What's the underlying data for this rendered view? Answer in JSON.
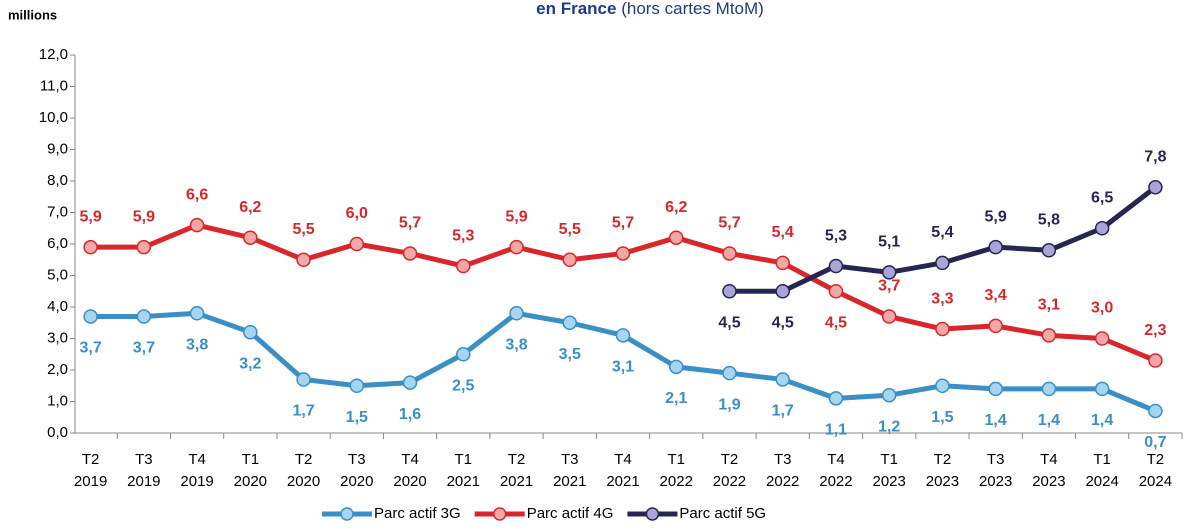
{
  "chart_data": {
    "type": "line",
    "title_bold": "en France",
    "title_rest": "(hors cartes MtoM)",
    "y_axis_label": "millions",
    "categories": [
      "T2 2019",
      "T3 2019",
      "T4 2019",
      "T1 2020",
      "T2 2020",
      "T3 2020",
      "T4 2020",
      "T1 2021",
      "T2 2021",
      "T3 2021",
      "T4 2021",
      "T1 2022",
      "T2 2022",
      "T3 2022",
      "T4 2022",
      "T1 2023",
      "T2 2023",
      "T3 2023",
      "T4 2023",
      "T1 2024",
      "T2 2024"
    ],
    "series": [
      {
        "name": "Parc actif 3G",
        "color": "#3a8fc7",
        "marker_fill": "#a6d5ef",
        "values": [
          3.7,
          3.7,
          3.8,
          3.2,
          1.7,
          1.5,
          1.6,
          2.5,
          3.8,
          3.5,
          3.1,
          2.1,
          1.9,
          1.7,
          1.1,
          1.2,
          1.5,
          1.4,
          1.4,
          1.4,
          0.7
        ],
        "value_labels": [
          "3,7",
          "3,7",
          "3,8",
          "3,2",
          "1,7",
          "1,5",
          "1,6",
          "2,5",
          "3,8",
          "3,5",
          "3,1",
          "2,1",
          "1,9",
          "1,7",
          "1,1",
          "1,2",
          "1,5",
          "1,4",
          "1,4",
          "1,4",
          "0,7"
        ]
      },
      {
        "name": "Parc actif 4G",
        "color": "#d9262b",
        "marker_fill": "#f4a7a7",
        "values": [
          5.9,
          5.9,
          6.6,
          6.2,
          5.5,
          6.0,
          5.7,
          5.3,
          5.9,
          5.5,
          5.7,
          6.2,
          5.7,
          5.4,
          4.5,
          3.7,
          3.3,
          3.4,
          3.1,
          3.0,
          2.3
        ],
        "value_labels": [
          "5,9",
          "5,9",
          "6,6",
          "6,2",
          "5,5",
          "6,0",
          "5,7",
          "5,3",
          "5,9",
          "5,5",
          "5,7",
          "6,2",
          "5,7",
          "5,4",
          "4,5",
          "3,7",
          "3,3",
          "3,4",
          "3,1",
          "3,0",
          "2,3"
        ]
      },
      {
        "name": "Parc actif 5G",
        "color": "#262650",
        "marker_fill": "#aaa5d6",
        "values": [
          null,
          null,
          null,
          null,
          null,
          null,
          null,
          null,
          null,
          null,
          null,
          null,
          4.5,
          4.5,
          5.3,
          5.1,
          5.4,
          5.9,
          5.8,
          6.5,
          7.8
        ],
        "value_labels": [
          null,
          null,
          null,
          null,
          null,
          null,
          null,
          null,
          null,
          null,
          null,
          null,
          "4,5",
          "4,5",
          "5,3",
          "5,1",
          "5,4",
          "5,9",
          "5,8",
          "6,5",
          "7,8"
        ]
      }
    ],
    "ylim": [
      0,
      12
    ],
    "yticks": [
      {
        "value": 0,
        "label": "0,0"
      },
      {
        "value": 1,
        "label": "1,0"
      },
      {
        "value": 2,
        "label": "2,0"
      },
      {
        "value": 3,
        "label": "3,0"
      },
      {
        "value": 4,
        "label": "4,0"
      },
      {
        "value": 5,
        "label": "5,0"
      },
      {
        "value": 6,
        "label": "6,0"
      },
      {
        "value": 7,
        "label": "7,0"
      },
      {
        "value": 8,
        "label": "8,0"
      },
      {
        "value": 9,
        "label": "9,0"
      },
      {
        "value": 10,
        "label": "10,0"
      },
      {
        "value": 11,
        "label": "11,0"
      },
      {
        "value": 12,
        "label": "12,0"
      }
    ],
    "legend": "bottom"
  }
}
